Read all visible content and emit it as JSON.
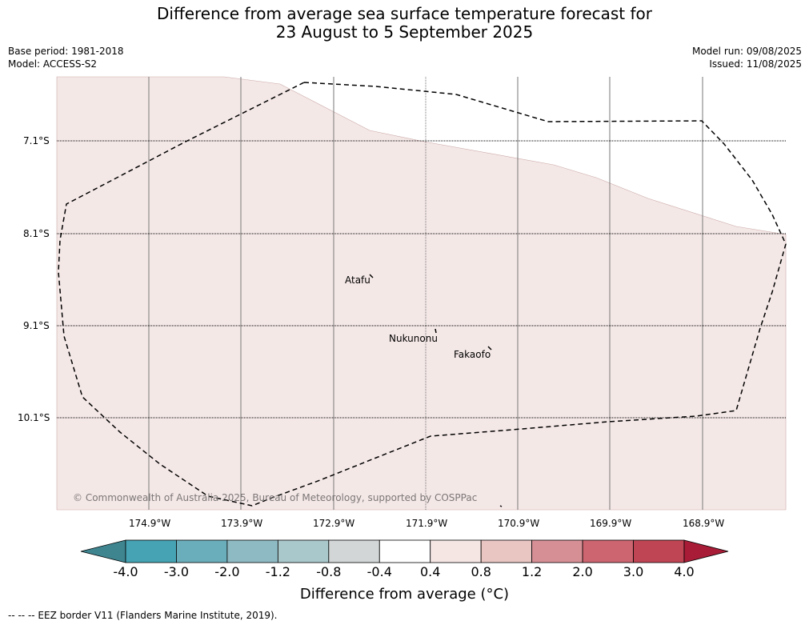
{
  "title": {
    "line1": "Difference from average sea surface temperature forecast for",
    "line2": "23 August to 5 September 2025"
  },
  "meta": {
    "base_period": "Base period: 1981-2018",
    "model": "Model: ACCESS-S2",
    "model_run": "Model run: 09/08/2025",
    "issued": "Issued: 11/08/2025"
  },
  "map": {
    "lat_labels": [
      "7.1°S",
      "8.1°S",
      "9.1°S",
      "10.1°S"
    ],
    "lon_labels": [
      "174.9°W",
      "173.9°W",
      "172.9°W",
      "171.9°W",
      "170.9°W",
      "169.9°W",
      "168.9°W"
    ],
    "places": [
      {
        "name": "Atafu"
      },
      {
        "name": "Nukunonu"
      },
      {
        "name": "Fakaofo"
      }
    ],
    "copyright": "© Commonwealth of Australia 2025, Bureau of Meteorology, supported by COSPPac",
    "anomaly_fill_color": "#f4e8e7"
  },
  "colorbar": {
    "ticks": [
      "-4.0",
      "-3.0",
      "-2.0",
      "-1.2",
      "-0.8",
      "-0.4",
      "0.4",
      "0.8",
      "1.2",
      "2.0",
      "3.0",
      "4.0"
    ],
    "colors": [
      "#3e8590",
      "#45a3b3",
      "#6aaebb",
      "#8ebac3",
      "#a9c8cb",
      "#d2d6d7",
      "#ffffff",
      "#f5e6e4",
      "#e9c6c2",
      "#d78f96",
      "#cd6570",
      "#bf4554",
      "#a81c37"
    ],
    "title": "Difference from average (°C)"
  },
  "legend": {
    "eez": "-- -- -- EEZ border V11 (Flanders Marine Institute, 2019)."
  }
}
